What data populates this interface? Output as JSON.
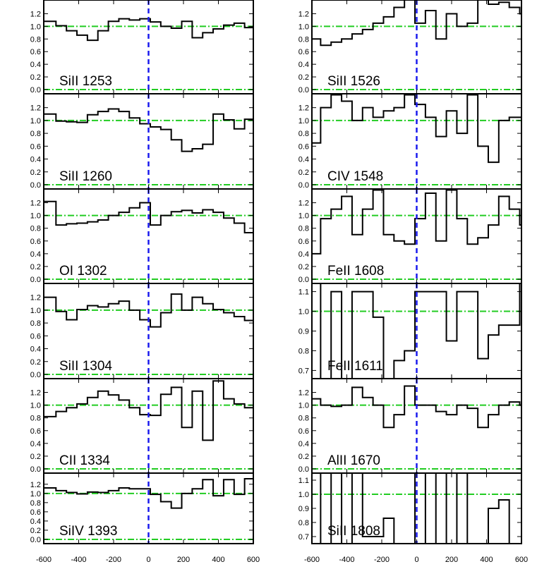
{
  "chart_data": {
    "type": "line",
    "title": "",
    "xlabel": "",
    "ylabel": "",
    "x_ticks": [
      "-600",
      "-400",
      "-200",
      "0",
      "200",
      "400",
      "600"
    ],
    "xlim": [
      -600,
      600
    ],
    "reference_lines": {
      "continuum_level": 1.0,
      "zero_level": 0.0,
      "velocity_zero": 0
    },
    "colors": {
      "spectrum": "#000000",
      "continuum": "#22cc22",
      "zero_velocity": "#1a1aee"
    },
    "grid": false,
    "legend": "none",
    "panels": [
      {
        "label": "SiII 1253",
        "ylim": [
          0.0,
          1.35
        ],
        "y_ticks": [
          "0.0",
          "0.2",
          "0.4",
          "0.6",
          "0.8",
          "1.0",
          "1.2"
        ],
        "x": [
          -600,
          -530,
          -470,
          -410,
          -350,
          -290,
          -230,
          -170,
          -110,
          -50,
          10,
          70,
          130,
          190,
          250,
          310,
          370,
          430,
          490,
          550,
          600
        ],
        "y": [
          1.08,
          1.01,
          0.93,
          0.86,
          0.78,
          0.93,
          1.08,
          1.12,
          1.1,
          1.12,
          1.07,
          1.0,
          0.97,
          1.08,
          0.82,
          0.9,
          0.96,
          1.02,
          1.05,
          0.98,
          0.86
        ]
      },
      {
        "label": "SiII 1260",
        "ylim": [
          0.0,
          1.35
        ],
        "y_ticks": [
          "0.0",
          "0.2",
          "0.4",
          "0.6",
          "0.8",
          "1.0",
          "1.2"
        ],
        "x": [
          -600,
          -530,
          -470,
          -410,
          -350,
          -290,
          -230,
          -170,
          -110,
          -50,
          10,
          70,
          130,
          190,
          250,
          310,
          370,
          430,
          490,
          550,
          600
        ],
        "y": [
          1.1,
          0.99,
          0.98,
          0.97,
          1.09,
          1.14,
          1.18,
          1.14,
          1.04,
          0.95,
          0.9,
          0.86,
          0.7,
          0.52,
          0.56,
          0.63,
          1.1,
          1.01,
          0.87,
          1.02,
          1.05
        ]
      },
      {
        "label": "OI 1302",
        "ylim": [
          0.0,
          1.35
        ],
        "y_ticks": [
          "0.0",
          "0.2",
          "0.4",
          "0.6",
          "0.8",
          "1.0",
          "1.2"
        ],
        "x": [
          -600,
          -530,
          -470,
          -410,
          -350,
          -290,
          -230,
          -170,
          -110,
          -50,
          10,
          70,
          130,
          190,
          250,
          310,
          370,
          430,
          490,
          550,
          600
        ],
        "y": [
          1.22,
          0.85,
          0.87,
          0.88,
          0.9,
          0.93,
          1.0,
          1.05,
          1.12,
          1.2,
          0.85,
          1.0,
          1.06,
          1.08,
          1.04,
          1.09,
          1.05,
          0.96,
          0.88,
          0.73,
          1.1
        ]
      },
      {
        "label": "SiII 1304",
        "ylim": [
          0.0,
          1.35
        ],
        "y_ticks": [
          "0.0",
          "0.2",
          "0.4",
          "0.6",
          "0.8",
          "1.0",
          "1.2"
        ],
        "x": [
          -600,
          -530,
          -470,
          -410,
          -350,
          -290,
          -230,
          -170,
          -110,
          -50,
          10,
          70,
          130,
          190,
          250,
          310,
          370,
          430,
          490,
          550,
          600
        ],
        "y": [
          1.2,
          0.98,
          0.85,
          1.01,
          1.07,
          1.05,
          1.1,
          1.14,
          1.0,
          0.85,
          0.74,
          0.96,
          1.25,
          1.0,
          1.2,
          1.1,
          1.01,
          0.96,
          0.9,
          0.84,
          1.02
        ]
      },
      {
        "label": "CII 1334",
        "ylim": [
          0.0,
          1.35
        ],
        "y_ticks": [
          "0.0",
          "0.2",
          "0.4",
          "0.6",
          "0.8",
          "1.0",
          "1.2"
        ],
        "x": [
          -600,
          -530,
          -470,
          -410,
          -350,
          -290,
          -230,
          -170,
          -110,
          -50,
          10,
          70,
          130,
          190,
          250,
          310,
          370,
          430,
          490,
          550,
          600
        ],
        "y": [
          0.82,
          0.9,
          0.96,
          1.02,
          1.12,
          1.22,
          1.16,
          1.08,
          0.96,
          0.85,
          0.84,
          1.17,
          1.28,
          0.65,
          1.22,
          0.45,
          1.38,
          1.1,
          1.02,
          0.96,
          1.0
        ]
      },
      {
        "label": "SiIV 1393",
        "ylim": [
          0.0,
          1.35
        ],
        "y_ticks": [
          "0.0",
          "0.2",
          "0.4",
          "0.6",
          "0.8",
          "1.0",
          "1.2"
        ],
        "x": [
          -600,
          -530,
          -470,
          -410,
          -350,
          -290,
          -230,
          -170,
          -110,
          -50,
          10,
          70,
          130,
          190,
          250,
          310,
          370,
          430,
          490,
          550,
          600
        ],
        "y": [
          1.12,
          1.06,
          1.02,
          0.99,
          1.03,
          1.02,
          1.06,
          1.12,
          1.1,
          1.1,
          0.98,
          0.82,
          0.68,
          1.0,
          1.1,
          1.3,
          0.95,
          1.3,
          0.98,
          1.32,
          0.82
        ]
      },
      {
        "label": "SiII 1526",
        "ylim": [
          0.0,
          1.35
        ],
        "y_ticks": [
          "0.0",
          "0.2",
          "0.4",
          "0.6",
          "0.8",
          "1.0",
          "1.2"
        ],
        "x": [
          -600,
          -550,
          -490,
          -430,
          -370,
          -310,
          -250,
          -190,
          -130,
          -70,
          -10,
          50,
          110,
          170,
          230,
          290,
          350,
          410,
          470,
          530,
          590
        ],
        "y": [
          0.8,
          0.7,
          0.75,
          0.8,
          0.88,
          0.95,
          1.05,
          1.15,
          1.3,
          1.45,
          1.05,
          1.25,
          0.8,
          1.2,
          1.0,
          1.05,
          1.5,
          1.35,
          1.38,
          1.3,
          1.2
        ]
      },
      {
        "label": "CIV 1548",
        "ylim": [
          0.0,
          1.35
        ],
        "y_ticks": [
          "0.0",
          "0.2",
          "0.4",
          "0.6",
          "0.8",
          "1.0",
          "1.2"
        ],
        "x": [
          -600,
          -550,
          -490,
          -430,
          -370,
          -310,
          -250,
          -190,
          -130,
          -70,
          -10,
          50,
          110,
          170,
          230,
          290,
          350,
          410,
          470,
          530,
          590
        ],
        "y": [
          0.65,
          1.2,
          1.4,
          1.3,
          1.0,
          1.2,
          1.05,
          1.15,
          1.2,
          1.4,
          1.25,
          1.05,
          0.75,
          1.15,
          0.8,
          1.4,
          0.6,
          0.35,
          1.0,
          1.05,
          1.05
        ]
      },
      {
        "label": "FeII 1608",
        "ylim": [
          0.0,
          1.35
        ],
        "y_ticks": [
          "0.0",
          "0.2",
          "0.4",
          "0.6",
          "0.8",
          "1.0",
          "1.2"
        ],
        "x": [
          -600,
          -550,
          -490,
          -430,
          -370,
          -310,
          -250,
          -190,
          -130,
          -70,
          -10,
          50,
          110,
          170,
          230,
          290,
          350,
          410,
          470,
          530,
          590
        ],
        "y": [
          0.4,
          0.95,
          1.1,
          1.3,
          0.7,
          1.1,
          1.4,
          0.7,
          0.6,
          0.55,
          0.95,
          1.35,
          0.6,
          1.4,
          0.95,
          0.55,
          0.65,
          0.85,
          1.3,
          1.1,
          0.85
        ]
      },
      {
        "label": "FeII 1611",
        "ylim": [
          0.68,
          1.12
        ],
        "y_ticks": [
          "0.7",
          "0.8",
          "0.9",
          "1.0",
          "1.1"
        ],
        "x": [
          -600,
          -550,
          -490,
          -430,
          -370,
          -310,
          -250,
          -190,
          -130,
          -70,
          -10,
          50,
          110,
          170,
          230,
          290,
          350,
          410,
          470,
          530,
          590
        ],
        "y": [
          1.15,
          0.65,
          1.1,
          0.65,
          1.1,
          1.1,
          0.97,
          0.65,
          0.75,
          0.8,
          1.1,
          1.1,
          1.1,
          0.85,
          1.1,
          1.1,
          0.76,
          0.88,
          0.93,
          0.93,
          1.15
        ]
      },
      {
        "label": "AlII 1670",
        "ylim": [
          0.0,
          1.35
        ],
        "y_ticks": [
          "0.0",
          "0.2",
          "0.4",
          "0.6",
          "0.8",
          "1.0",
          "1.2"
        ],
        "x": [
          -600,
          -550,
          -490,
          -430,
          -370,
          -310,
          -250,
          -190,
          -130,
          -70,
          -10,
          50,
          110,
          170,
          230,
          290,
          350,
          410,
          470,
          530,
          590
        ],
        "y": [
          1.1,
          1.0,
          0.98,
          1.0,
          1.28,
          1.12,
          1.0,
          0.65,
          0.85,
          1.3,
          1.0,
          1.0,
          0.9,
          0.85,
          1.0,
          0.95,
          0.65,
          0.85,
          1.0,
          1.05,
          1.0
        ]
      },
      {
        "label": "SiII 1808",
        "ylim": [
          0.68,
          1.12
        ],
        "y_ticks": [
          "0.7",
          "0.8",
          "0.9",
          "1.0",
          "1.1"
        ],
        "x": [
          -600,
          -550,
          -490,
          -430,
          -370,
          -310,
          -250,
          -190,
          -130,
          -70,
          -10,
          50,
          110,
          170,
          230,
          290,
          350,
          410,
          470,
          530,
          590
        ],
        "y": [
          1.15,
          0.65,
          1.15,
          0.65,
          1.15,
          0.7,
          0.7,
          0.83,
          0.65,
          0.65,
          1.15,
          0.65,
          1.15,
          0.65,
          1.15,
          0.65,
          0.65,
          0.9,
          0.96,
          0.65,
          0.65
        ]
      }
    ]
  }
}
